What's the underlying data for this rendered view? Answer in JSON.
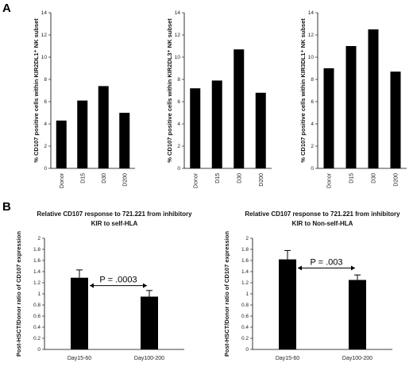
{
  "panel_labels": [
    "A",
    "B"
  ],
  "chart_data": [
    {
      "type": "bar",
      "panel": "A",
      "categories": [
        "Donor",
        "D15",
        "D30",
        "D200"
      ],
      "values": [
        4.3,
        6.1,
        7.4,
        5.0
      ],
      "ylabel": "% CD107 positive cells within KIR2DL1⁺ NK subset",
      "ylim": [
        0,
        14
      ],
      "yticks": [
        "0",
        "2",
        "4",
        "6",
        "8",
        "10",
        "12",
        "14"
      ],
      "bar_color": "#000000"
    },
    {
      "type": "bar",
      "panel": "A",
      "categories": [
        "Donor",
        "D15",
        "D30",
        "D200"
      ],
      "values": [
        7.2,
        7.9,
        10.7,
        6.8
      ],
      "ylabel": "% CD107 positive cells within KIR2DL3⁺ NK subset",
      "ylim": [
        0,
        14
      ],
      "yticks": [
        "0",
        "2",
        "4",
        "6",
        "8",
        "10",
        "12",
        "14"
      ],
      "bar_color": "#000000"
    },
    {
      "type": "bar",
      "panel": "A",
      "categories": [
        "Donor",
        "D15",
        "D30",
        "D200"
      ],
      "values": [
        9.0,
        11.0,
        12.5,
        8.7
      ],
      "ylabel": "% CD107 positive cells within KIR3DL1⁺ NK subset",
      "ylim": [
        0,
        14
      ],
      "yticks": [
        "0",
        "2",
        "4",
        "6",
        "8",
        "10",
        "12",
        "14"
      ],
      "bar_color": "#000000"
    },
    {
      "type": "bar",
      "panel": "B",
      "title_lines": [
        "Relative CD107 response to 721.221 from inhibitory",
        "KIR to self-HLA"
      ],
      "categories": [
        "Day15-60",
        "Day100-200"
      ],
      "values": [
        1.29,
        0.95
      ],
      "errors": [
        0.14,
        0.11
      ],
      "ylabel": "Post-HSCT/Donor ratio of CD107 expression",
      "ylim": [
        0,
        2
      ],
      "yticks": [
        "0",
        "0.2",
        "0.4",
        "0.6",
        "0.8",
        "1",
        "1.2",
        "1.4",
        "1.6",
        "1.8",
        "2"
      ],
      "annotation": "P = .0003",
      "bar_color": "#000000"
    },
    {
      "type": "bar",
      "panel": "B",
      "title_lines": [
        "Relative CD107 response to 721.221 from inhibitory",
        "KIR to Non-self-HLA"
      ],
      "categories": [
        "Day15-60",
        "Day100-200"
      ],
      "values": [
        1.62,
        1.25
      ],
      "errors": [
        0.16,
        0.09
      ],
      "ylabel": "Post-HSCT/Donor ratio of CD107 expression",
      "ylim": [
        0,
        2
      ],
      "yticks": [
        "0",
        "0.2",
        "0.4",
        "0.6",
        "0.8",
        "1",
        "1.2",
        "1.4",
        "1.6",
        "1.8",
        "2"
      ],
      "annotation": "P = .003",
      "bar_color": "#000000"
    }
  ]
}
